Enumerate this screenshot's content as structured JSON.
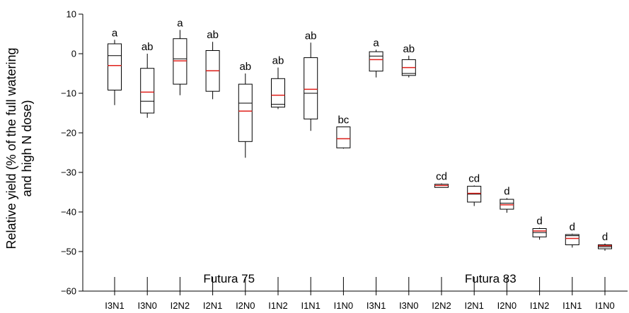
{
  "chart_data": {
    "type": "box",
    "ylabel_line1": "Relative yield (% of the full watering",
    "ylabel_line2": "and high N dose)",
    "ylim": [
      -60,
      10
    ],
    "yticks": [
      "10",
      "0",
      "−10",
      "−20",
      "−30",
      "−40",
      "−50",
      "−60"
    ],
    "grid": false,
    "groups": [
      {
        "name": "Futura 75",
        "categories": [
          "I3N1",
          "I3N0",
          "I2N2",
          "I2N1",
          "I2N0",
          "I1N2",
          "I1N1",
          "I1N0"
        ]
      },
      {
        "name": "Futura 83",
        "categories": [
          "I3N1",
          "I3N0",
          "I2N2",
          "I2N1",
          "I2N0",
          "I1N2",
          "I1N1",
          "I1N0"
        ]
      }
    ],
    "boxes": [
      {
        "category": "I3N1",
        "min": -13,
        "q1": -9.2,
        "median": -0.5,
        "mean": -3,
        "q3": 2.5,
        "max": 3.5,
        "label": "a"
      },
      {
        "category": "I3N0",
        "min": -16.2,
        "q1": -15,
        "median": -12,
        "mean": -9.7,
        "q3": -3.7,
        "max": 0,
        "label": "ab"
      },
      {
        "category": "I2N2",
        "min": -10.5,
        "q1": -7.7,
        "median": -1.3,
        "mean": -1.8,
        "q3": 3.8,
        "max": 6,
        "label": "a"
      },
      {
        "category": "I2N1",
        "min": -11.5,
        "q1": -9.5,
        "median": -4.3,
        "mean": -4.3,
        "q3": 0.8,
        "max": 3,
        "label": "ab"
      },
      {
        "category": "I2N0",
        "min": -26.3,
        "q1": -22.2,
        "median": -12.5,
        "mean": -14.5,
        "q3": -7.7,
        "max": -5,
        "label": "ab"
      },
      {
        "category": "I1N2",
        "min": -14,
        "q1": -13.5,
        "median": -12.8,
        "mean": -10.5,
        "q3": -6.3,
        "max": -3.5,
        "label": "ab"
      },
      {
        "category": "I1N1",
        "min": -19.5,
        "q1": -16.5,
        "median": -10,
        "mean": -9,
        "q3": -1,
        "max": 2.8,
        "label": "ab"
      },
      {
        "category": "I1N0",
        "min": -24,
        "q1": -23.8,
        "median": -21.5,
        "mean": -21.5,
        "q3": -18.5,
        "max": -18.5,
        "label": "bc"
      },
      {
        "category": "I3N1",
        "min": -6,
        "q1": -4.4,
        "median": -0.6,
        "mean": -1.5,
        "q3": 0.5,
        "max": 1,
        "label": "a"
      },
      {
        "category": "I3N0",
        "min": -6,
        "q1": -5.5,
        "median": -5,
        "mean": -3.5,
        "q3": -1.5,
        "max": -0.5,
        "label": "ab"
      },
      {
        "category": "I2N2",
        "min": -33.8,
        "q1": -33.8,
        "median": -33.3,
        "mean": -33.3,
        "q3": -33,
        "max": -32.8,
        "label": "cd"
      },
      {
        "category": "I2N1",
        "min": -38.5,
        "q1": -37.5,
        "median": -35.5,
        "mean": -35.3,
        "q3": -33.5,
        "max": -33.3,
        "label": "cd"
      },
      {
        "category": "I2N0",
        "min": -40.2,
        "q1": -39.3,
        "median": -37.8,
        "mean": -38.2,
        "q3": -36.8,
        "max": -36.5,
        "label": "d"
      },
      {
        "category": "I1N2",
        "min": -47,
        "q1": -46.3,
        "median": -45.2,
        "mean": -44.8,
        "q3": -44.2,
        "max": -44,
        "label": "d"
      },
      {
        "category": "I1N1",
        "min": -49,
        "q1": -48.3,
        "median": -46,
        "mean": -46.7,
        "q3": -45.7,
        "max": -45.5,
        "label": "d"
      },
      {
        "category": "I1N0",
        "min": -49.8,
        "q1": -49.3,
        "median": -48.8,
        "mean": -48.5,
        "q3": -48.3,
        "max": -48,
        "label": "d"
      }
    ],
    "colors": {
      "box": "#000000",
      "mean": "#e0201b",
      "axis": "#000000"
    }
  }
}
